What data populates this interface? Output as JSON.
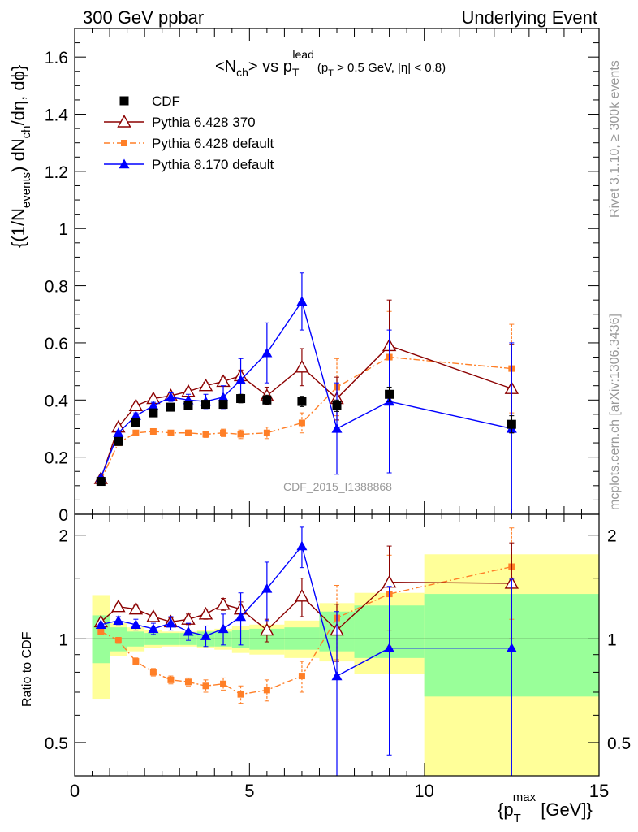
{
  "header": {
    "left": "300 GeV ppbar",
    "right": "Underlying Event"
  },
  "side_labels": {
    "rivet": "Rivet 3.1.10, ≥ 300k events",
    "mcplots": "mcplots.cern.ch [arXiv:1306.3436]"
  },
  "watermark": "CDF_2015_I1388868",
  "plot_title": {
    "main": "<N",
    "sub_ch": "ch",
    "mid": "> vs p",
    "sub_T": "T",
    "sup_lead": "lead",
    "cut": "(p",
    "cut_sub": "T",
    "cut_rest": " > 0.5 GeV, |η| < 0.8)"
  },
  "ylabel_main": {
    "a": "{(1/N",
    "a_sub": "events",
    "b": ") dN",
    "b_sub": "ch",
    "c": "/dη, dϕ}"
  },
  "ylabel_ratio": "Ratio to CDF",
  "xlabel": {
    "a": "{p",
    "sub": "T",
    "sup": "max",
    "b": " [GeV]}"
  },
  "colors": {
    "cdf": "#000000",
    "p6_370": "#8b0000",
    "p6_default": "#ff7f27",
    "p8": "#0000ff",
    "band_inner": "#99ff99",
    "band_outer": "#ffff99"
  },
  "chart_data": {
    "type": "scatter",
    "xlim": [
      0,
      15
    ],
    "main_ylim": [
      0,
      1.7
    ],
    "ratio_ylim": [
      0.4,
      2.3
    ],
    "ratio_log": true,
    "main_yticks": [
      "0",
      "0.2",
      "0.4",
      "0.6",
      "0.8",
      "1",
      "1.2",
      "1.4",
      "1.6"
    ],
    "main_ytick_values": [
      0,
      0.2,
      0.4,
      0.6,
      0.8,
      1.0,
      1.2,
      1.4,
      1.6
    ],
    "ratio_yticks": [
      "0.5",
      "1",
      "2"
    ],
    "ratio_ytick_values": [
      0.5,
      1,
      2
    ],
    "xticks": [
      "0",
      "5",
      "10",
      "15"
    ],
    "xtick_values": [
      0,
      5,
      10,
      15
    ],
    "legend": {
      "position": "top-left"
    },
    "series": [
      {
        "name": "CDF",
        "key": "cdf",
        "marker": "square",
        "line": "none",
        "x": [
          0.75,
          1.25,
          1.75,
          2.25,
          2.75,
          3.25,
          3.75,
          4.25,
          4.75,
          5.5,
          6.5,
          7.5,
          9.0,
          12.5
        ],
        "y": [
          0.115,
          0.255,
          0.32,
          0.355,
          0.375,
          0.38,
          0.385,
          0.385,
          0.405,
          0.4,
          0.395,
          0.38,
          0.42,
          0.315
        ],
        "err": [
          0.008,
          0.01,
          0.01,
          0.01,
          0.01,
          0.012,
          0.012,
          0.013,
          0.015,
          0.017,
          0.018,
          0.02,
          0.025,
          0.03
        ]
      },
      {
        "name": "Pythia 6.428 370",
        "key": "p6_370",
        "marker": "triangle-open",
        "line": "solid",
        "x": [
          0.75,
          1.25,
          1.75,
          2.25,
          2.75,
          3.25,
          3.75,
          4.25,
          4.75,
          5.5,
          6.5,
          7.5,
          9.0,
          12.5
        ],
        "y": [
          0.125,
          0.305,
          0.38,
          0.405,
          0.415,
          0.43,
          0.45,
          0.465,
          0.485,
          0.415,
          0.515,
          0.405,
          0.59,
          0.44
        ],
        "err": [
          0.004,
          0.007,
          0.008,
          0.009,
          0.01,
          0.011,
          0.012,
          0.015,
          0.02,
          0.03,
          0.065,
          0.075,
          0.16,
          0.155
        ],
        "ratio": [
          1.12,
          1.24,
          1.22,
          1.16,
          1.12,
          1.14,
          1.18,
          1.26,
          1.22,
          1.06,
          1.33,
          1.06,
          1.46,
          1.45
        ],
        "ratio_err": [
          0.02,
          0.03,
          0.03,
          0.03,
          0.03,
          0.04,
          0.04,
          0.05,
          0.06,
          0.08,
          0.17,
          0.2,
          0.4,
          0.45
        ]
      },
      {
        "name": "Pythia 6.428 default",
        "key": "p6_default",
        "marker": "square-small",
        "line": "dashdot",
        "x": [
          0.75,
          1.25,
          1.75,
          2.25,
          2.75,
          3.25,
          3.75,
          4.25,
          4.75,
          5.5,
          6.5,
          7.5,
          9.0,
          12.5
        ],
        "y": [
          0.12,
          0.25,
          0.285,
          0.29,
          0.285,
          0.285,
          0.28,
          0.285,
          0.28,
          0.285,
          0.32,
          0.445,
          0.55,
          0.51
        ],
        "err": [
          0.004,
          0.006,
          0.007,
          0.008,
          0.009,
          0.01,
          0.011,
          0.013,
          0.015,
          0.02,
          0.035,
          0.1,
          0.16,
          0.155
        ],
        "ratio": [
          1.05,
          0.99,
          0.86,
          0.8,
          0.76,
          0.75,
          0.73,
          0.74,
          0.69,
          0.71,
          0.78,
          1.15,
          1.35,
          1.62
        ],
        "ratio_err": [
          0.02,
          0.02,
          0.02,
          0.02,
          0.02,
          0.02,
          0.03,
          0.03,
          0.04,
          0.05,
          0.08,
          0.28,
          0.4,
          0.48
        ]
      },
      {
        "name": "Pythia 8.170 default",
        "key": "p8",
        "marker": "triangle-filled",
        "line": "solid",
        "x": [
          0.75,
          1.25,
          1.75,
          2.25,
          2.75,
          3.25,
          3.75,
          4.25,
          4.75,
          5.5,
          6.5,
          7.5,
          9.0,
          12.5
        ],
        "y": [
          0.128,
          0.285,
          0.345,
          0.38,
          0.41,
          0.4,
          0.395,
          0.41,
          0.47,
          0.565,
          0.745,
          0.3,
          0.395,
          0.3
        ],
        "err": [
          0.004,
          0.007,
          0.01,
          0.012,
          0.015,
          0.02,
          0.025,
          0.04,
          0.075,
          0.105,
          0.1,
          0.16,
          0.25,
          0.3
        ],
        "ratio": [
          1.1,
          1.13,
          1.1,
          1.07,
          1.11,
          1.05,
          1.02,
          1.07,
          1.16,
          1.4,
          1.86,
          0.78,
          0.94,
          0.94
        ],
        "ratio_err": [
          0.02,
          0.03,
          0.04,
          0.04,
          0.05,
          0.06,
          0.07,
          0.11,
          0.2,
          0.27,
          0.25,
          0.42,
          0.48,
          0.55
        ]
      }
    ],
    "bands": {
      "edges": [
        0.5,
        1.0,
        1.5,
        2.0,
        2.5,
        3.0,
        3.5,
        4.0,
        4.5,
        5.0,
        6.0,
        7.0,
        8.0,
        10.0,
        15.0
      ],
      "inner": [
        [
          0.85,
          1.17
        ],
        [
          0.92,
          1.08
        ],
        [
          0.95,
          1.05
        ],
        [
          0.96,
          1.04
        ],
        [
          0.96,
          1.04
        ],
        [
          0.96,
          1.04
        ],
        [
          0.95,
          1.05
        ],
        [
          0.95,
          1.05
        ],
        [
          0.94,
          1.06
        ],
        [
          0.93,
          1.07
        ],
        [
          0.93,
          1.08
        ],
        [
          0.92,
          1.2
        ],
        [
          0.88,
          1.25
        ],
        [
          0.68,
          1.35
        ]
      ],
      "outer": [
        [
          0.67,
          1.34
        ],
        [
          0.89,
          1.11
        ],
        [
          0.92,
          1.08
        ],
        [
          0.94,
          1.06
        ],
        [
          0.95,
          1.05
        ],
        [
          0.95,
          1.05
        ],
        [
          0.94,
          1.06
        ],
        [
          0.93,
          1.07
        ],
        [
          0.91,
          1.09
        ],
        [
          0.9,
          1.1
        ],
        [
          0.88,
          1.13
        ],
        [
          0.86,
          1.27
        ],
        [
          0.79,
          1.36
        ],
        [
          0.4,
          1.76
        ]
      ]
    }
  }
}
